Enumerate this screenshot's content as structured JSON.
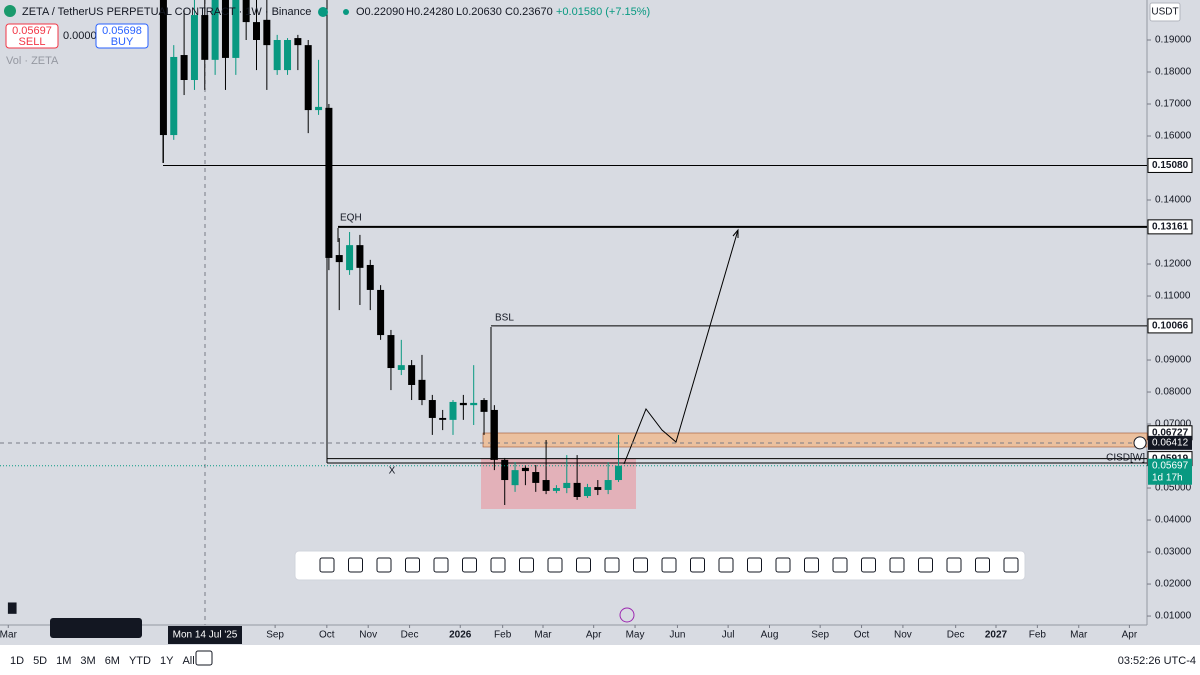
{
  "header": {
    "title": "ZETA / TetherUS PERPETUAL CONTRACT · 1W · Binance",
    "ohlc": [
      "O0.22090",
      "H0.24280",
      "L0.20630",
      "C0.23670"
    ],
    "change": "+0.01580 (+7.15%)",
    "sell_price": "0.05697",
    "sell": "SELL",
    "spread": "0.00001",
    "buy_price": "0.05698",
    "buy": "BUY",
    "volume": "Vol · ZETA",
    "currency": "USDT"
  },
  "chart_data": {
    "type": "candlestick",
    "x": [
      15,
      16,
      17,
      18,
      19,
      20,
      21,
      22,
      23,
      24,
      25,
      26,
      27,
      28,
      29,
      30,
      31,
      32,
      33,
      34,
      35,
      36,
      37,
      38,
      39,
      40,
      41,
      42,
      43,
      44,
      45,
      46,
      47,
      48,
      49,
      50,
      51,
      52,
      53,
      54,
      55,
      56,
      57,
      58,
      59
    ],
    "open": [
      0.2025,
      0.1603,
      0.1853,
      0.1775,
      0.1978,
      0.1838,
      0.2025,
      0.1844,
      0.2025,
      0.1956,
      0.1963,
      0.1806,
      0.1806,
      0.1906,
      0.1884,
      0.1681,
      0.1688,
      0.1228,
      0.1181,
      0.1259,
      0.1197,
      0.1119,
      0.0978,
      0.0869,
      0.0884,
      0.0838,
      0.0775,
      0.0719,
      0.0713,
      0.0766,
      0.0759,
      0.0775,
      0.0744,
      0.0588,
      0.0509,
      0.0563,
      0.055,
      0.0525,
      0.0491,
      0.05,
      0.0516,
      0.0475,
      0.0503,
      0.0494,
      0.0525
    ],
    "high": [
      0.2025,
      0.1884,
      0.1994,
      0.2025,
      0.2025,
      0.2025,
      0.2025,
      0.2025,
      0.2025,
      0.2025,
      0.2025,
      0.1916,
      0.1906,
      0.1916,
      0.19,
      0.1838,
      0.17,
      0.1281,
      0.13,
      0.1291,
      0.1213,
      0.1134,
      0.0994,
      0.0963,
      0.09,
      0.0916,
      0.0791,
      0.0744,
      0.0775,
      0.0791,
      0.0884,
      0.0781,
      0.0759,
      0.0594,
      0.0581,
      0.0572,
      0.0572,
      0.065,
      0.0509,
      0.0603,
      0.0603,
      0.0513,
      0.0525,
      0.0581,
      0.0666
    ],
    "low": [
      0.1516,
      0.1588,
      0.1728,
      0.1744,
      0.1744,
      0.1791,
      0.1744,
      0.1791,
      0.19,
      0.1806,
      0.1744,
      0.1791,
      0.1791,
      0.1806,
      0.1609,
      0.1666,
      0.1181,
      0.1056,
      0.1166,
      0.1072,
      0.1056,
      0.0963,
      0.0806,
      0.0853,
      0.0775,
      0.0759,
      0.0666,
      0.0681,
      0.0666,
      0.0713,
      0.0697,
      0.0666,
      0.0556,
      0.0447,
      0.0488,
      0.0509,
      0.0488,
      0.0481,
      0.0484,
      0.0484,
      0.0463,
      0.0469,
      0.0478,
      0.0481,
      0.0519
    ],
    "close": [
      0.1603,
      0.1847,
      0.1775,
      0.1978,
      0.1838,
      0.2025,
      0.1844,
      0.2025,
      0.1956,
      0.19,
      0.1884,
      0.19,
      0.19,
      0.1884,
      0.1681,
      0.1691,
      0.1219,
      0.1206,
      0.1259,
      0.1188,
      0.1119,
      0.0978,
      0.0875,
      0.0884,
      0.0822,
      0.0775,
      0.0719,
      0.0713,
      0.0769,
      0.0759,
      0.0766,
      0.0738,
      0.0588,
      0.0525,
      0.0556,
      0.0553,
      0.0516,
      0.0491,
      0.05,
      0.0516,
      0.0472,
      0.0503,
      0.0494,
      0.0525,
      0.05697
    ],
    "up_color": "#089981",
    "down_color": "#000000",
    "xlim": [
      -0.8,
      110.1
    ],
    "ylim": [
      0.0072,
      0.2025
    ],
    "xticks": [
      {
        "value": 0,
        "label": "Mar"
      },
      {
        "value": 25.8,
        "label": "Sep"
      },
      {
        "value": 30.8,
        "label": "Oct"
      },
      {
        "value": 34.8,
        "label": "Nov"
      },
      {
        "value": 38.8,
        "label": "Dec"
      },
      {
        "value": 43.7,
        "label": "2026"
      },
      {
        "value": 47.8,
        "label": "Feb"
      },
      {
        "value": 51.7,
        "label": "Mar"
      },
      {
        "value": 56.6,
        "label": "Apr"
      },
      {
        "value": 60.6,
        "label": "May"
      },
      {
        "value": 64.7,
        "label": "Jun"
      },
      {
        "value": 69.6,
        "label": "Jul"
      },
      {
        "value": 73.6,
        "label": "Aug"
      },
      {
        "value": 78.5,
        "label": "Sep"
      },
      {
        "value": 82.5,
        "label": "Oct"
      },
      {
        "value": 86.5,
        "label": "Nov"
      },
      {
        "value": 91.6,
        "label": "Dec"
      },
      {
        "value": 95.5,
        "label": "2027"
      },
      {
        "value": 99.5,
        "label": "Feb"
      },
      {
        "value": 103.5,
        "label": "Mar"
      },
      {
        "value": 108.4,
        "label": "Apr"
      }
    ],
    "yticks": [
      {
        "value": 0.19,
        "label": "0.19000"
      },
      {
        "value": 0.18,
        "label": "0.18000"
      },
      {
        "value": 0.17,
        "label": "0.17000"
      },
      {
        "value": 0.16,
        "label": "0.16000"
      },
      {
        "value": 0.14,
        "label": "0.14000"
      },
      {
        "value": 0.12,
        "label": "0.12000"
      },
      {
        "value": 0.11,
        "label": "0.11000"
      },
      {
        "value": 0.09,
        "label": "0.09000"
      },
      {
        "value": 0.08,
        "label": "0.08000"
      },
      {
        "value": 0.07,
        "label": "0.07000"
      },
      {
        "value": 0.05,
        "label": "0.05000"
      },
      {
        "value": 0.04,
        "label": "0.04000"
      },
      {
        "value": 0.03,
        "label": "0.03000"
      },
      {
        "value": 0.02,
        "label": "0.02000"
      },
      {
        "value": 0.01,
        "label": "0.01000"
      }
    ],
    "levels": [
      {
        "value": 0.1508,
        "label": "0.15080"
      },
      0.13161,
      0.10066,
      0.06727,
      0.05919
    ],
    "crosshair_price": 0.06412,
    "crosshair_date": "Mon 14 Jul '25",
    "last_price": 0.05697,
    "countdown": "1d 17h",
    "annotations": [
      "EQH",
      "BSL",
      "X",
      "CISD[W]"
    ]
  },
  "footer": {
    "ranges": [
      "1D",
      "5D",
      "1M",
      "3M",
      "6M",
      "YTD",
      "1Y",
      "All"
    ],
    "clock": "03:52:26 UTC-4"
  }
}
